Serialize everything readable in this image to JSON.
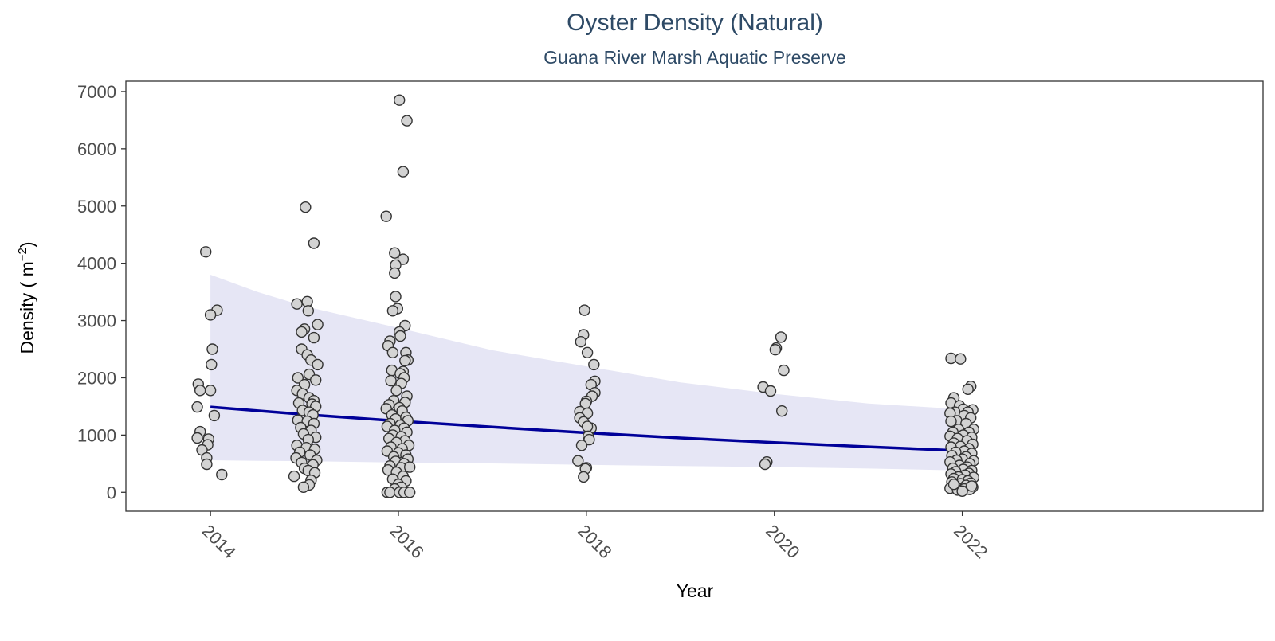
{
  "chart_data": {
    "type": "scatter",
    "title": "Oyster Density (Natural)",
    "subtitle": "Guana River Marsh Aquatic Preserve",
    "xlabel": "Year",
    "ylabel": "Density ( m",
    "ylabel_sup": "−2",
    "ylabel_close": ")",
    "xlim": [
      2013.1,
      2025.2
    ],
    "ylim": [
      -330,
      7180
    ],
    "x_ticks": [
      2014,
      2016,
      2018,
      2020,
      2022
    ],
    "x_tick_labels": [
      "2014",
      "2016",
      "2018",
      "2020",
      "2022"
    ],
    "y_ticks": [
      0,
      1000,
      2000,
      3000,
      4000,
      5000,
      6000,
      7000
    ],
    "y_tick_labels": [
      "0",
      "1000",
      "2000",
      "3000",
      "4000",
      "5000",
      "6000",
      "7000"
    ],
    "grid": false,
    "legend": "none",
    "colors": {
      "point_fill": "#d3d3d3",
      "point_stroke": "#333333",
      "trend_line": "#000099",
      "confidence_band": "#e6e6f5",
      "title": "#2e4a66"
    },
    "trend": {
      "x": [
        2014,
        2015,
        2016,
        2017,
        2018,
        2019,
        2020,
        2021,
        2022
      ],
      "y": [
        1490,
        1360,
        1245,
        1140,
        1040,
        950,
        870,
        795,
        725
      ]
    },
    "band": {
      "x": [
        2014,
        2014.5,
        2015,
        2016,
        2017,
        2018,
        2019,
        2020,
        2021,
        2022
      ],
      "upper": [
        3800,
        3500,
        3250,
        2870,
        2480,
        2200,
        1920,
        1720,
        1550,
        1450
      ],
      "lower": [
        560,
        550,
        545,
        520,
        505,
        480,
        460,
        440,
        415,
        380
      ]
    },
    "series": [
      {
        "year": 2014,
        "points": [
          [
            -0.05,
            4200
          ],
          [
            0.07,
            3180
          ],
          [
            0.0,
            3100
          ],
          [
            0.02,
            2500
          ],
          [
            0.01,
            2230
          ],
          [
            -0.13,
            1890
          ],
          [
            -0.11,
            1780
          ],
          [
            0.0,
            1780
          ],
          [
            -0.14,
            1490
          ],
          [
            0.04,
            1340
          ],
          [
            -0.11,
            1060
          ],
          [
            -0.14,
            950
          ],
          [
            -0.02,
            930
          ],
          [
            -0.03,
            830
          ],
          [
            -0.09,
            740
          ],
          [
            -0.04,
            600
          ],
          [
            -0.04,
            490
          ],
          [
            0.12,
            310
          ]
        ]
      },
      {
        "year": 2015,
        "points": [
          [
            0.01,
            4980
          ],
          [
            0.1,
            4350
          ],
          [
            0.03,
            3330
          ],
          [
            -0.08,
            3290
          ],
          [
            0.04,
            3170
          ],
          [
            0.14,
            2930
          ],
          [
            0.0,
            2850
          ],
          [
            -0.03,
            2800
          ],
          [
            0.1,
            2700
          ],
          [
            -0.03,
            2500
          ],
          [
            0.03,
            2400
          ],
          [
            0.07,
            2310
          ],
          [
            0.14,
            2230
          ],
          [
            0.05,
            2060
          ],
          [
            -0.07,
            2000
          ],
          [
            0.12,
            1960
          ],
          [
            0.0,
            1880
          ],
          [
            -0.08,
            1780
          ],
          [
            -0.02,
            1720
          ],
          [
            0.05,
            1650
          ],
          [
            0.1,
            1600
          ],
          [
            -0.06,
            1560
          ],
          [
            0.08,
            1540
          ],
          [
            0.12,
            1500
          ],
          [
            -0.02,
            1430
          ],
          [
            0.05,
            1400
          ],
          [
            0.09,
            1350
          ],
          [
            -0.07,
            1260
          ],
          [
            0.03,
            1240
          ],
          [
            0.1,
            1200
          ],
          [
            -0.04,
            1130
          ],
          [
            0.07,
            1080
          ],
          [
            -0.01,
            1020
          ],
          [
            0.12,
            960
          ],
          [
            0.04,
            920
          ],
          [
            -0.08,
            820
          ],
          [
            0.02,
            780
          ],
          [
            0.11,
            750
          ],
          [
            -0.05,
            700
          ],
          [
            0.06,
            650
          ],
          [
            -0.09,
            600
          ],
          [
            0.13,
            560
          ],
          [
            -0.03,
            520
          ],
          [
            0.09,
            480
          ],
          [
            0.0,
            420
          ],
          [
            0.04,
            380
          ],
          [
            0.11,
            340
          ],
          [
            -0.11,
            280
          ],
          [
            0.07,
            210
          ],
          [
            0.05,
            130
          ],
          [
            -0.01,
            90
          ]
        ]
      },
      {
        "year": 2016,
        "points": [
          [
            0.01,
            6850
          ],
          [
            0.09,
            6490
          ],
          [
            0.05,
            5600
          ],
          [
            -0.13,
            4820
          ],
          [
            -0.04,
            4180
          ],
          [
            0.05,
            4070
          ],
          [
            -0.03,
            3970
          ],
          [
            -0.04,
            3830
          ],
          [
            -0.03,
            3420
          ],
          [
            -0.01,
            3210
          ],
          [
            -0.06,
            3170
          ],
          [
            0.07,
            2910
          ],
          [
            0.01,
            2800
          ],
          [
            0.02,
            2730
          ],
          [
            -0.09,
            2640
          ],
          [
            -0.11,
            2560
          ],
          [
            -0.06,
            2440
          ],
          [
            0.08,
            2440
          ],
          [
            0.1,
            2310
          ],
          [
            0.07,
            2300
          ],
          [
            -0.07,
            2130
          ],
          [
            0.05,
            2110
          ],
          [
            0.02,
            2070
          ],
          [
            0.06,
            2000
          ],
          [
            -0.08,
            1950
          ],
          [
            0.03,
            1900
          ],
          [
            -0.02,
            1780
          ],
          [
            0.09,
            1680
          ],
          [
            -0.05,
            1600
          ],
          [
            0.07,
            1570
          ],
          [
            -0.1,
            1530
          ],
          [
            0.01,
            1480
          ],
          [
            -0.13,
            1460
          ],
          [
            0.04,
            1420
          ],
          [
            -0.07,
            1350
          ],
          [
            0.08,
            1310
          ],
          [
            -0.03,
            1280
          ],
          [
            0.1,
            1250
          ],
          [
            -0.09,
            1200
          ],
          [
            0.02,
            1170
          ],
          [
            -0.12,
            1150
          ],
          [
            0.06,
            1120
          ],
          [
            -0.04,
            1080
          ],
          [
            0.09,
            1050
          ],
          [
            -0.06,
            1000
          ],
          [
            0.03,
            970
          ],
          [
            -0.1,
            940
          ],
          [
            0.07,
            900
          ],
          [
            -0.02,
            870
          ],
          [
            0.11,
            820
          ],
          [
            -0.08,
            790
          ],
          [
            0.04,
            760
          ],
          [
            -0.12,
            720
          ],
          [
            0.0,
            690
          ],
          [
            0.08,
            650
          ],
          [
            -0.05,
            620
          ],
          [
            0.1,
            580
          ],
          [
            -0.03,
            540
          ],
          [
            0.06,
            500
          ],
          [
            -0.09,
            460
          ],
          [
            0.03,
            430
          ],
          [
            0.12,
            440
          ],
          [
            -0.11,
            390
          ],
          [
            -0.02,
            350
          ],
          [
            0.05,
            280
          ],
          [
            -0.06,
            230
          ],
          [
            0.08,
            200
          ],
          [
            0.0,
            140
          ],
          [
            0.03,
            90
          ],
          [
            -0.04,
            60
          ],
          [
            -0.12,
            0
          ],
          [
            -0.09,
            0
          ],
          [
            0.01,
            0
          ],
          [
            0.06,
            0
          ],
          [
            0.12,
            0
          ]
        ]
      },
      {
        "year": 2018,
        "points": [
          [
            -0.02,
            3180
          ],
          [
            -0.03,
            2750
          ],
          [
            -0.06,
            2630
          ],
          [
            0.01,
            2440
          ],
          [
            0.08,
            2230
          ],
          [
            0.09,
            1940
          ],
          [
            0.05,
            1880
          ],
          [
            0.09,
            1740
          ],
          [
            0.06,
            1680
          ],
          [
            0.0,
            1590
          ],
          [
            -0.01,
            1550
          ],
          [
            -0.07,
            1410
          ],
          [
            0.01,
            1380
          ],
          [
            -0.07,
            1300
          ],
          [
            -0.03,
            1230
          ],
          [
            0.05,
            1120
          ],
          [
            0.01,
            1150
          ],
          [
            0.02,
            980
          ],
          [
            0.03,
            920
          ],
          [
            -0.05,
            820
          ],
          [
            -0.09,
            550
          ],
          [
            0.0,
            430
          ],
          [
            -0.01,
            410
          ],
          [
            -0.03,
            270
          ]
        ]
      },
      {
        "year": 2020,
        "points": [
          [
            0.07,
            2710
          ],
          [
            0.02,
            2520
          ],
          [
            0.01,
            2490
          ],
          [
            0.1,
            2130
          ],
          [
            -0.12,
            1840
          ],
          [
            -0.04,
            1770
          ],
          [
            0.08,
            1420
          ],
          [
            -0.08,
            530
          ],
          [
            -0.1,
            490
          ]
        ]
      },
      {
        "year": 2022,
        "points": [
          [
            -0.12,
            2340
          ],
          [
            -0.02,
            2330
          ],
          [
            0.09,
            1850
          ],
          [
            0.06,
            1800
          ],
          [
            -0.09,
            1650
          ],
          [
            -0.12,
            1560
          ],
          [
            -0.03,
            1510
          ],
          [
            0.01,
            1450
          ],
          [
            0.11,
            1440
          ],
          [
            -0.08,
            1400
          ],
          [
            0.06,
            1400
          ],
          [
            -0.13,
            1380
          ],
          [
            0.02,
            1340
          ],
          [
            0.09,
            1300
          ],
          [
            -0.06,
            1250
          ],
          [
            -0.12,
            1240
          ],
          [
            0.04,
            1200
          ],
          [
            0.12,
            1100
          ],
          [
            -0.04,
            1100
          ],
          [
            -0.1,
            1050
          ],
          [
            0.07,
            1050
          ],
          [
            0.01,
            1000
          ],
          [
            -0.13,
            980
          ],
          [
            0.1,
            960
          ],
          [
            -0.05,
            940
          ],
          [
            0.05,
            900
          ],
          [
            -0.09,
            860
          ],
          [
            0.11,
            840
          ],
          [
            -0.02,
            800
          ],
          [
            -0.12,
            790
          ],
          [
            0.07,
            760
          ],
          [
            0.02,
            720
          ],
          [
            -0.07,
            700
          ],
          [
            0.1,
            680
          ],
          [
            -0.11,
            640
          ],
          [
            0.04,
            620
          ],
          [
            0.0,
            580
          ],
          [
            -0.06,
            560
          ],
          [
            0.12,
            550
          ],
          [
            -0.13,
            530
          ],
          [
            0.08,
            500
          ],
          [
            -0.03,
            470
          ],
          [
            0.05,
            440
          ],
          [
            -0.1,
            420
          ],
          [
            0.01,
            400
          ],
          [
            0.1,
            380
          ],
          [
            -0.07,
            360
          ],
          [
            0.07,
            330
          ],
          [
            -0.12,
            320
          ],
          [
            0.03,
            300
          ],
          [
            -0.04,
            270
          ],
          [
            0.12,
            260
          ],
          [
            -0.09,
            240
          ],
          [
            0.0,
            220
          ],
          [
            0.06,
            200
          ],
          [
            -0.11,
            180
          ],
          [
            0.09,
            160
          ],
          [
            -0.02,
            150
          ],
          [
            0.04,
            120
          ],
          [
            -0.07,
            100
          ],
          [
            0.11,
            90
          ],
          [
            -0.13,
            70
          ],
          [
            0.02,
            60
          ],
          [
            0.08,
            50
          ],
          [
            -0.05,
            40
          ],
          [
            0.0,
            20
          ],
          [
            0.1,
            110
          ],
          [
            -0.09,
            140
          ]
        ]
      }
    ]
  }
}
